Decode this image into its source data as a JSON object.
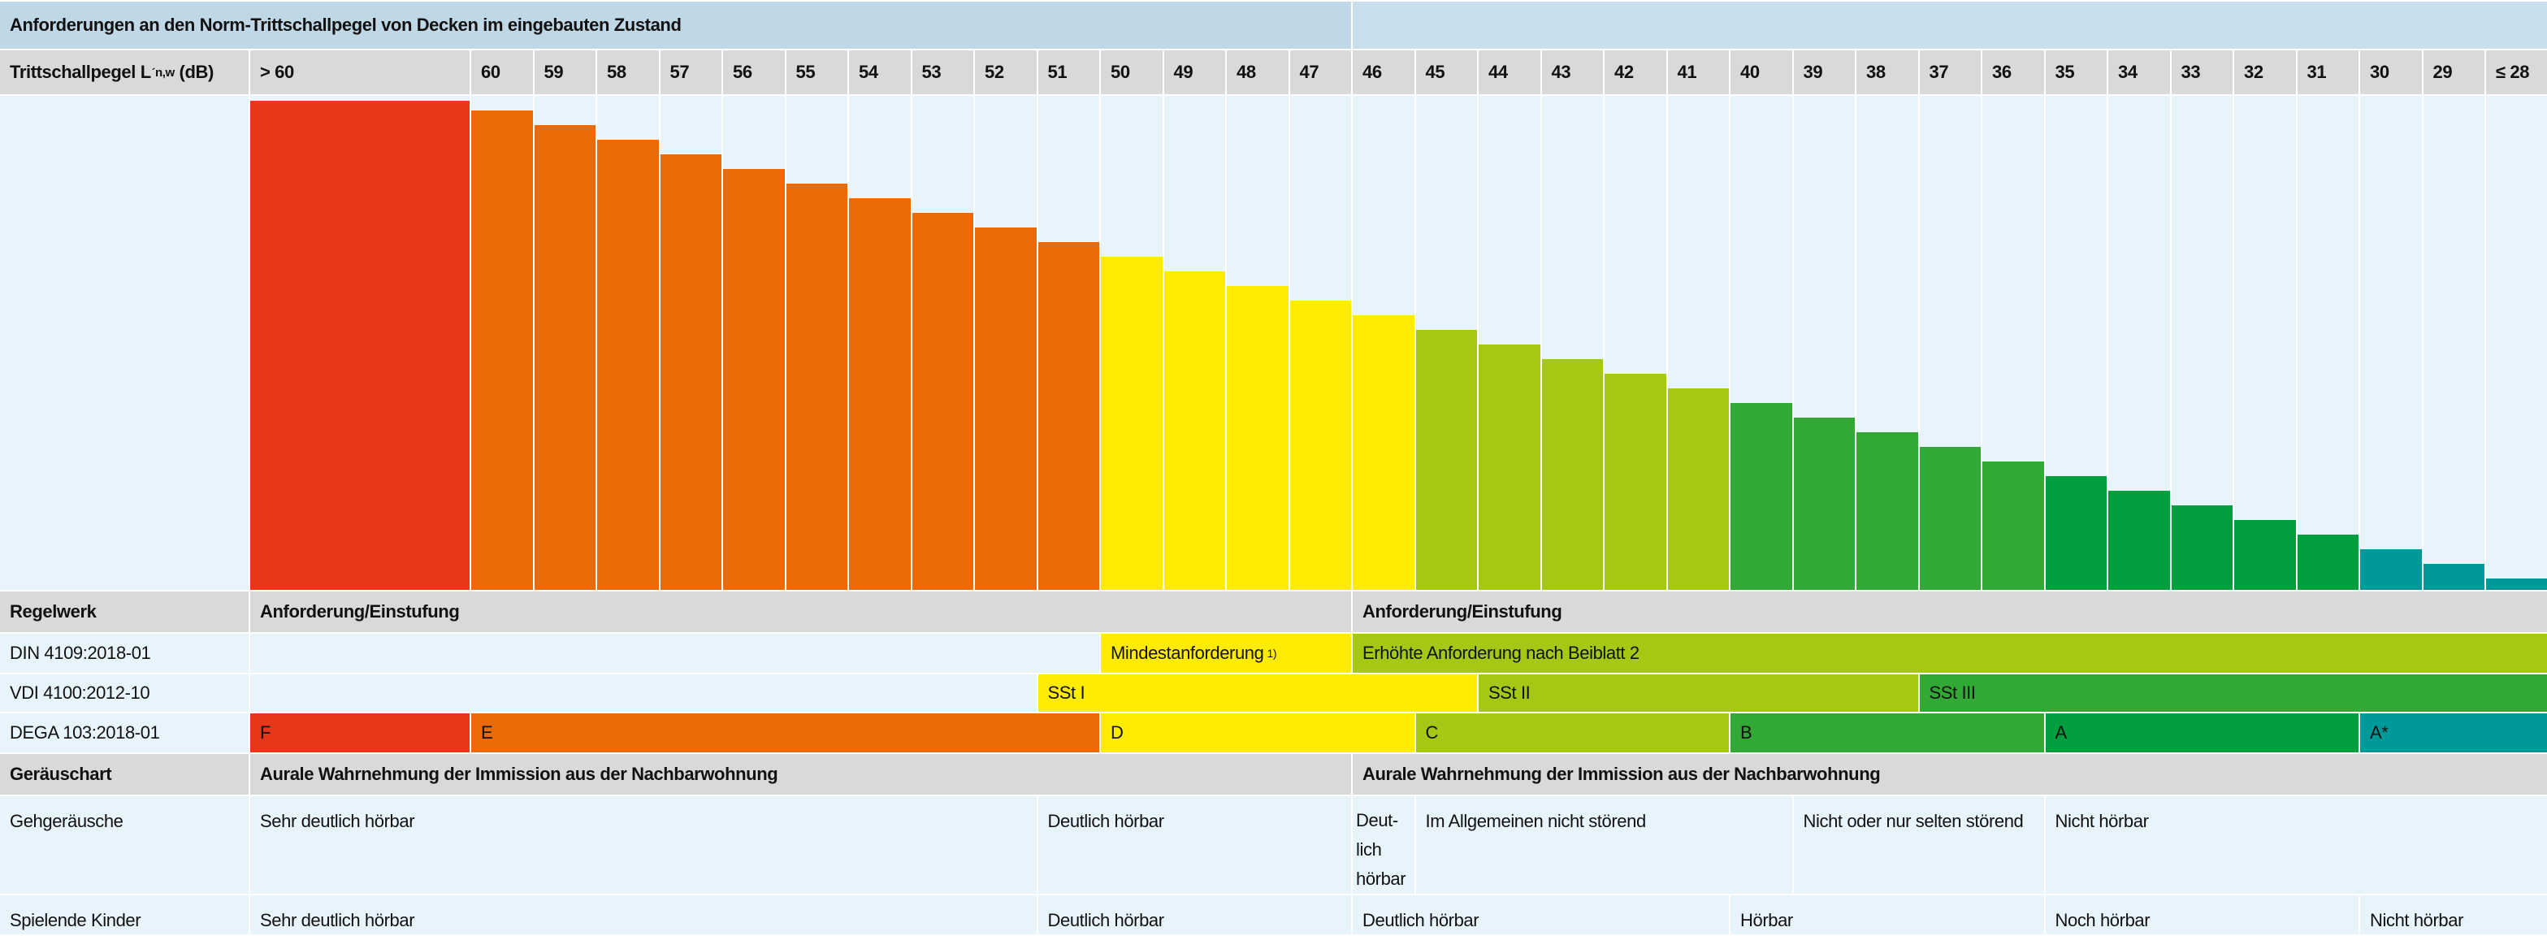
{
  "title": "Anforderungen an den Norm-Trittschallpegel von Decken im eingebauten Zustand",
  "header": {
    "label_main": "Trittschallpegel L",
    "label_prime": "´",
    "label_sub": "n,w",
    "label_unit": "(dB)",
    "columns": [
      "> 60",
      "60",
      "59",
      "58",
      "57",
      "56",
      "55",
      "54",
      "53",
      "52",
      "51",
      "50",
      "49",
      "48",
      "47",
      "46",
      "45",
      "44",
      "43",
      "42",
      "41",
      "40",
      "39",
      "38",
      "37",
      "36",
      "35",
      "34",
      "33",
      "32",
      "31",
      "30",
      "29",
      "≤ 28"
    ]
  },
  "colors": {
    "red": "#e8371a",
    "orange": "#ec6a06",
    "yellow": "#ffec00",
    "yellowgreen": "#a5c815",
    "green": "#33a935",
    "darkgreen": "#009e3c",
    "teal": "#00999a"
  },
  "column_colors": [
    "red",
    "orange",
    "orange",
    "orange",
    "orange",
    "orange",
    "orange",
    "orange",
    "orange",
    "orange",
    "orange",
    "yellow",
    "yellow",
    "yellow",
    "yellow",
    "yellow",
    "yellowgreen",
    "yellowgreen",
    "yellowgreen",
    "yellowgreen",
    "yellowgreen",
    "green",
    "green",
    "green",
    "green",
    "green",
    "darkgreen",
    "darkgreen",
    "darkgreen",
    "darkgreen",
    "darkgreen",
    "teal",
    "teal",
    "teal"
  ],
  "regelwerk": {
    "label": "Regelwerk",
    "left_heading": "Anforderung/Einstufung",
    "right_heading": "Anforderung/Einstufung",
    "rows": [
      {
        "name": "DIN 4109:2018-01",
        "segments": [
          {
            "from": 0,
            "to": 10,
            "text": "",
            "color": null
          },
          {
            "from": 11,
            "to": 14,
            "text": "Mindestanforderung",
            "sup": "1)",
            "color": "yellow"
          },
          {
            "from": 15,
            "to": 33,
            "text": "Erhöhte Anforderung nach Beiblatt 2",
            "color": "yellowgreen"
          }
        ]
      },
      {
        "name": "VDI 4100:2012-10",
        "segments": [
          {
            "from": 0,
            "to": 9,
            "text": "",
            "color": null
          },
          {
            "from": 10,
            "to": 16,
            "text": "SSt I",
            "color": "yellow"
          },
          {
            "from": 17,
            "to": 23,
            "text": "SSt II",
            "color": "yellowgreen"
          },
          {
            "from": 24,
            "to": 33,
            "text": "SSt III",
            "color": "green"
          }
        ]
      },
      {
        "name": "DEGA 103:2018-01",
        "segments": [
          {
            "from": 0,
            "to": 0,
            "text": "F",
            "color": "red"
          },
          {
            "from": 1,
            "to": 10,
            "text": "E",
            "color": "orange"
          },
          {
            "from": 11,
            "to": 15,
            "text": "D",
            "color": "yellow"
          },
          {
            "from": 16,
            "to": 20,
            "text": "C",
            "color": "yellowgreen"
          },
          {
            "from": 21,
            "to": 25,
            "text": "B",
            "color": "green"
          },
          {
            "from": 26,
            "to": 30,
            "text": "A",
            "color": "darkgreen"
          },
          {
            "from": 31,
            "to": 33,
            "text": "A*",
            "color": "teal"
          }
        ]
      }
    ]
  },
  "geraeuschart": {
    "label": "Geräuschart",
    "left_heading": "Aurale Wahrnehmung der Immission aus der Nachbarwohnung",
    "right_heading": "Aurale Wahrnehmung der Immission aus der Nachbarwohnung",
    "rows": [
      {
        "name": "Gehgeräusche",
        "segments": [
          {
            "from": 0,
            "to": 9,
            "text": "Sehr deutlich hörbar"
          },
          {
            "from": 10,
            "to": 14,
            "text": "Deutlich hörbar"
          },
          {
            "from": 15,
            "to": 15,
            "text": "Deut-lich hörbar"
          },
          {
            "from": 16,
            "to": 21,
            "text": "Im Allgemeinen nicht störend"
          },
          {
            "from": 22,
            "to": 25,
            "text": "Nicht oder nur selten störend"
          },
          {
            "from": 26,
            "to": 33,
            "text": "Nicht hörbar"
          }
        ]
      },
      {
        "name": "Spielende Kinder",
        "segments": [
          {
            "from": 0,
            "to": 9,
            "text": "Sehr deutlich hörbar"
          },
          {
            "from": 10,
            "to": 14,
            "text": "Deutlich hörbar"
          },
          {
            "from": 15,
            "to": 20,
            "text": "Deutlich hörbar"
          },
          {
            "from": 21,
            "to": 25,
            "text": "Hörbar"
          },
          {
            "from": 26,
            "to": 30,
            "text": "Noch hörbar"
          },
          {
            "from": 31,
            "to": 33,
            "text": "Nicht hörbar"
          }
        ]
      }
    ]
  }
}
